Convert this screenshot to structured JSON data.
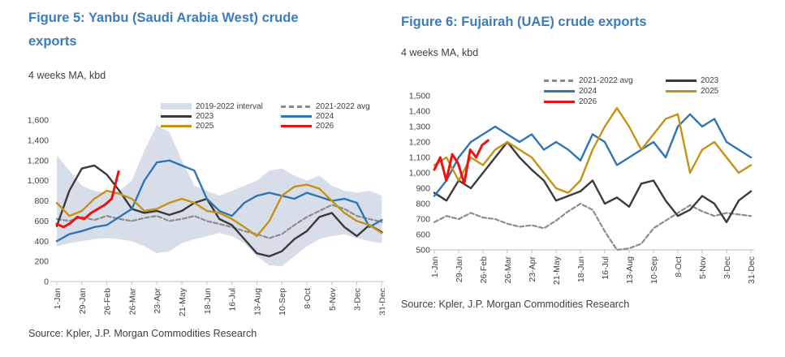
{
  "colors": {
    "title_blue": "#3B7CBE",
    "text_dark": "#404040",
    "axis_gray": "#BFBFBF",
    "band_fill": "#D8DEE9",
    "series_2023": "#3A3A3A",
    "series_2024": "#2E75B6",
    "series_2025": "#C69214",
    "series_2026": "#EE1111",
    "series_avg": "#8C8C8C"
  },
  "figures": [
    {
      "title": "Figure 5: Yanbu (Saudi Arabia West) crude exports",
      "subtitle": "4 weeks MA, kbd",
      "source": "Source: Kpler, J.P. Morgan Commodities Research"
    },
    {
      "title": "Figure 6: Fujairah (UAE) crude exports",
      "subtitle": "4 weeks MA, kbd",
      "source": "Source: Kpler, J.P. Morgan Commodities Research"
    }
  ],
  "chart_data": [
    {
      "type": "line",
      "title": "Figure 5: Yanbu (Saudi Arabia West) crude exports",
      "ylabel": "4 weeks MA, kbd",
      "xlabel": "",
      "x_tick_labels": [
        "1-Jan",
        "29-Jan",
        "26-Feb",
        "26-Mar",
        "23-Apr",
        "21-May",
        "18-Jun",
        "16-Jul",
        "13-Aug",
        "10-Sep",
        "8-Oct",
        "5-Nov",
        "3-Dec",
        "31-Dec"
      ],
      "y_tick_labels": [
        "0",
        "200",
        "400",
        "600",
        "800",
        "1,000",
        "1,200",
        "1,400",
        "1,600"
      ],
      "ylim": [
        0,
        1600
      ],
      "grid": false,
      "x_note": "weekly dates Jan 1 - Dec 31; series values sampled biweekly (kbd, 4-week MA)",
      "band": {
        "name": "2019-2022 interval",
        "color": "#D8DEE9",
        "upper": [
          1250,
          1100,
          950,
          900,
          880,
          900,
          1000,
          1300,
          1550,
          1480,
          1200,
          950,
          900,
          850,
          900,
          950,
          1000,
          1100,
          1120,
          1050,
          1000,
          1050,
          950,
          900,
          880,
          900,
          850
        ],
        "lower": [
          350,
          380,
          400,
          420,
          430,
          420,
          400,
          350,
          280,
          300,
          380,
          420,
          450,
          480,
          450,
          380,
          250,
          160,
          150,
          250,
          350,
          420,
          450,
          470,
          430,
          400,
          380
        ]
      },
      "series": [
        {
          "name": "2021-2022 avg",
          "color": "#8C8C8C",
          "style": "dashed",
          "values": [
            620,
            600,
            640,
            610,
            650,
            620,
            600,
            630,
            650,
            600,
            620,
            650,
            600,
            570,
            540,
            500,
            470,
            430,
            470,
            560,
            640,
            700,
            760,
            720,
            650,
            620,
            590
          ]
        },
        {
          "name": "2023",
          "color": "#3A3A3A",
          "style": "solid",
          "values": [
            550,
            900,
            1120,
            1150,
            1060,
            900,
            720,
            680,
            700,
            660,
            700,
            780,
            820,
            620,
            560,
            420,
            280,
            250,
            300,
            420,
            500,
            640,
            680,
            540,
            450,
            560,
            490
          ]
        },
        {
          "name": "2024",
          "color": "#2E75B6",
          "style": "solid",
          "values": [
            400,
            470,
            500,
            540,
            560,
            640,
            720,
            1000,
            1180,
            1200,
            1150,
            1100,
            820,
            700,
            650,
            780,
            850,
            880,
            850,
            820,
            880,
            840,
            800,
            820,
            780,
            540,
            610
          ]
        },
        {
          "name": "2025",
          "color": "#C69214",
          "style": "solid",
          "values": [
            780,
            650,
            700,
            820,
            900,
            870,
            820,
            700,
            720,
            780,
            820,
            780,
            700,
            680,
            620,
            540,
            450,
            600,
            850,
            940,
            960,
            920,
            800,
            680,
            600,
            560,
            480
          ]
        },
        {
          "name": "2026",
          "color": "#EE1111",
          "style": "solid",
          "end_frac": 0.19,
          "values": [
            570,
            540,
            580,
            640,
            620,
            680,
            720,
            760,
            820,
            1090
          ]
        }
      ],
      "legend": {
        "position": "top-right-inside",
        "columns": [
          [
            {
              "label": "2019-2022 interval",
              "swatch": "band",
              "color": "#D8DEE9"
            },
            {
              "label": "2023",
              "swatch": "line",
              "color": "#3A3A3A"
            },
            {
              "label": "2025",
              "swatch": "line",
              "color": "#C69214"
            }
          ],
          [
            {
              "label": "2021-2022 avg",
              "swatch": "dash",
              "color": "#8C8C8C"
            },
            {
              "label": "2024",
              "swatch": "line",
              "color": "#2E75B6"
            },
            {
              "label": "2026",
              "swatch": "line",
              "color": "#EE1111"
            }
          ]
        ]
      }
    },
    {
      "type": "line",
      "title": "Figure 6: Fujairah (UAE) crude exports",
      "ylabel": "4 weeks MA, kbd",
      "xlabel": "",
      "x_tick_labels": [
        "1-Jan",
        "29-Jan",
        "26-Feb",
        "26-Mar",
        "23-Apr",
        "21-May",
        "18-Jun",
        "16-Jul",
        "13-Aug",
        "10-Sep",
        "8-Oct",
        "5-Nov",
        "3-Dec",
        "31-Dec"
      ],
      "y_tick_labels": [
        "500",
        "600",
        "700",
        "800",
        "900",
        "1,000",
        "1,100",
        "1,200",
        "1,300",
        "1,400",
        "1,500"
      ],
      "ylim": [
        500,
        1500
      ],
      "grid": false,
      "x_note": "weekly dates Jan 1 - Dec 31; series values sampled biweekly (kbd, 4-week MA)",
      "series": [
        {
          "name": "2021-2022 avg",
          "color": "#8C8C8C",
          "style": "dashed",
          "values": [
            680,
            720,
            700,
            740,
            710,
            700,
            670,
            650,
            660,
            640,
            690,
            750,
            800,
            760,
            620,
            500,
            510,
            540,
            640,
            690,
            740,
            790,
            750,
            720,
            740,
            730,
            720
          ]
        },
        {
          "name": "2023",
          "color": "#3A3A3A",
          "style": "solid",
          "values": [
            870,
            820,
            950,
            900,
            1000,
            1100,
            1200,
            1100,
            1020,
            950,
            820,
            850,
            880,
            950,
            800,
            840,
            780,
            930,
            950,
            820,
            720,
            760,
            850,
            800,
            680,
            820,
            880
          ]
        },
        {
          "name": "2024",
          "color": "#2E75B6",
          "style": "solid",
          "values": [
            850,
            950,
            1100,
            1200,
            1250,
            1300,
            1250,
            1200,
            1250,
            1150,
            1200,
            1150,
            1080,
            1250,
            1200,
            1050,
            1100,
            1150,
            1200,
            1100,
            1300,
            1380,
            1300,
            1350,
            1200,
            1150,
            1100
          ]
        },
        {
          "name": "2025",
          "color": "#C69214",
          "style": "solid",
          "values": [
            1050,
            1100,
            950,
            1100,
            1050,
            1150,
            1200,
            1150,
            1100,
            1000,
            900,
            870,
            950,
            1150,
            1300,
            1420,
            1300,
            1150,
            1250,
            1350,
            1380,
            1000,
            1150,
            1200,
            1100,
            1000,
            1050
          ]
        },
        {
          "name": "2026",
          "color": "#EE1111",
          "style": "solid",
          "end_frac": 0.17,
          "values": [
            1020,
            1100,
            950,
            1120,
            1060,
            930,
            1150,
            1100,
            1180,
            1210
          ]
        }
      ],
      "legend": {
        "position": "top-center-above",
        "columns": [
          [
            {
              "label": "2021-2022 avg",
              "swatch": "dash",
              "color": "#8C8C8C"
            },
            {
              "label": "2024",
              "swatch": "line",
              "color": "#2E75B6"
            },
            {
              "label": "2026",
              "swatch": "line",
              "color": "#EE1111"
            }
          ],
          [
            {
              "label": "2023",
              "swatch": "line",
              "color": "#3A3A3A"
            },
            {
              "label": "2025",
              "swatch": "line",
              "color": "#C69214"
            }
          ]
        ]
      }
    }
  ]
}
